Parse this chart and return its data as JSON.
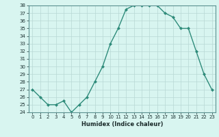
{
  "x": [
    0,
    1,
    2,
    3,
    4,
    5,
    6,
    7,
    8,
    9,
    10,
    11,
    12,
    13,
    14,
    15,
    16,
    17,
    18,
    19,
    20,
    21,
    22,
    23
  ],
  "y": [
    27,
    26,
    25,
    25,
    25.5,
    24,
    25,
    26,
    28,
    30,
    33,
    35,
    37.5,
    38,
    38,
    38,
    38,
    37,
    36.5,
    35,
    35,
    32,
    29,
    27
  ],
  "xlabel": "Humidex (Indice chaleur)",
  "line_color": "#2e8b7a",
  "marker": "D",
  "marker_size": 2,
  "bg_color": "#d8f5f0",
  "grid_color": "#b8d8d4",
  "ylim": [
    24,
    38
  ],
  "xlim": [
    -0.5,
    23.5
  ],
  "yticks": [
    24,
    25,
    26,
    27,
    28,
    29,
    30,
    31,
    32,
    33,
    34,
    35,
    36,
    37,
    38
  ],
  "xticks": [
    0,
    1,
    2,
    3,
    4,
    5,
    6,
    7,
    8,
    9,
    10,
    11,
    12,
    13,
    14,
    15,
    16,
    17,
    18,
    19,
    20,
    21,
    22,
    23
  ],
  "tick_fontsize": 5,
  "xlabel_fontsize": 6
}
